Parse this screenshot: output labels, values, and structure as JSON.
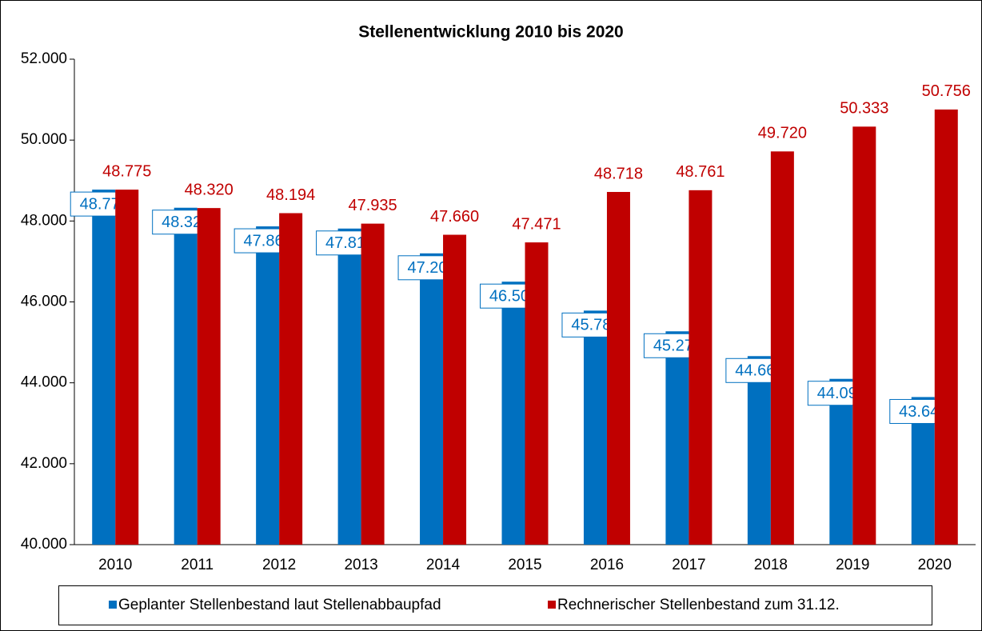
{
  "chart_data": {
    "type": "bar",
    "title": "Stellenentwicklung  2010 bis 2020",
    "categories": [
      "2010",
      "2011",
      "2012",
      "2013",
      "2014",
      "2015",
      "2016",
      "2017",
      "2018",
      "2019",
      "2020"
    ],
    "series": [
      {
        "name": "Geplanter Stellenbestand laut Stellenabbaupfad",
        "color": "#0070c0",
        "values": [
          48775,
          48328,
          47867,
          47813,
          47200,
          46500,
          45785,
          45273,
          44660,
          44098,
          43648
        ],
        "value_labels": [
          "48.775",
          "48.328",
          "47.867",
          "47.813",
          "47.200",
          "46.500",
          "45.785",
          "45.273",
          "44.660",
          "44.098",
          "43.648"
        ]
      },
      {
        "name": "Rechnerischer Stellenbestand zum 31.12.",
        "color": "#c00000",
        "values": [
          48775,
          48320,
          48194,
          47935,
          47660,
          47471,
          48718,
          48761,
          49720,
          50333,
          50756
        ],
        "value_labels": [
          "48.775",
          "48.320",
          "48.194",
          "47.935",
          "47.660",
          "47.471",
          "48.718",
          "48.761",
          "49.720",
          "50.333",
          "50.756"
        ]
      }
    ],
    "ylim": [
      40000,
      52000
    ],
    "yticks": [
      {
        "value": 40000,
        "label": "40.000"
      },
      {
        "value": 42000,
        "label": "42.000"
      },
      {
        "value": 44000,
        "label": "44.000"
      },
      {
        "value": 46000,
        "label": "46.000"
      },
      {
        "value": 48000,
        "label": "48.000"
      },
      {
        "value": 50000,
        "label": "50.000"
      },
      {
        "value": 52000,
        "label": "52.000"
      }
    ],
    "grid": false,
    "legend": "bottom"
  }
}
